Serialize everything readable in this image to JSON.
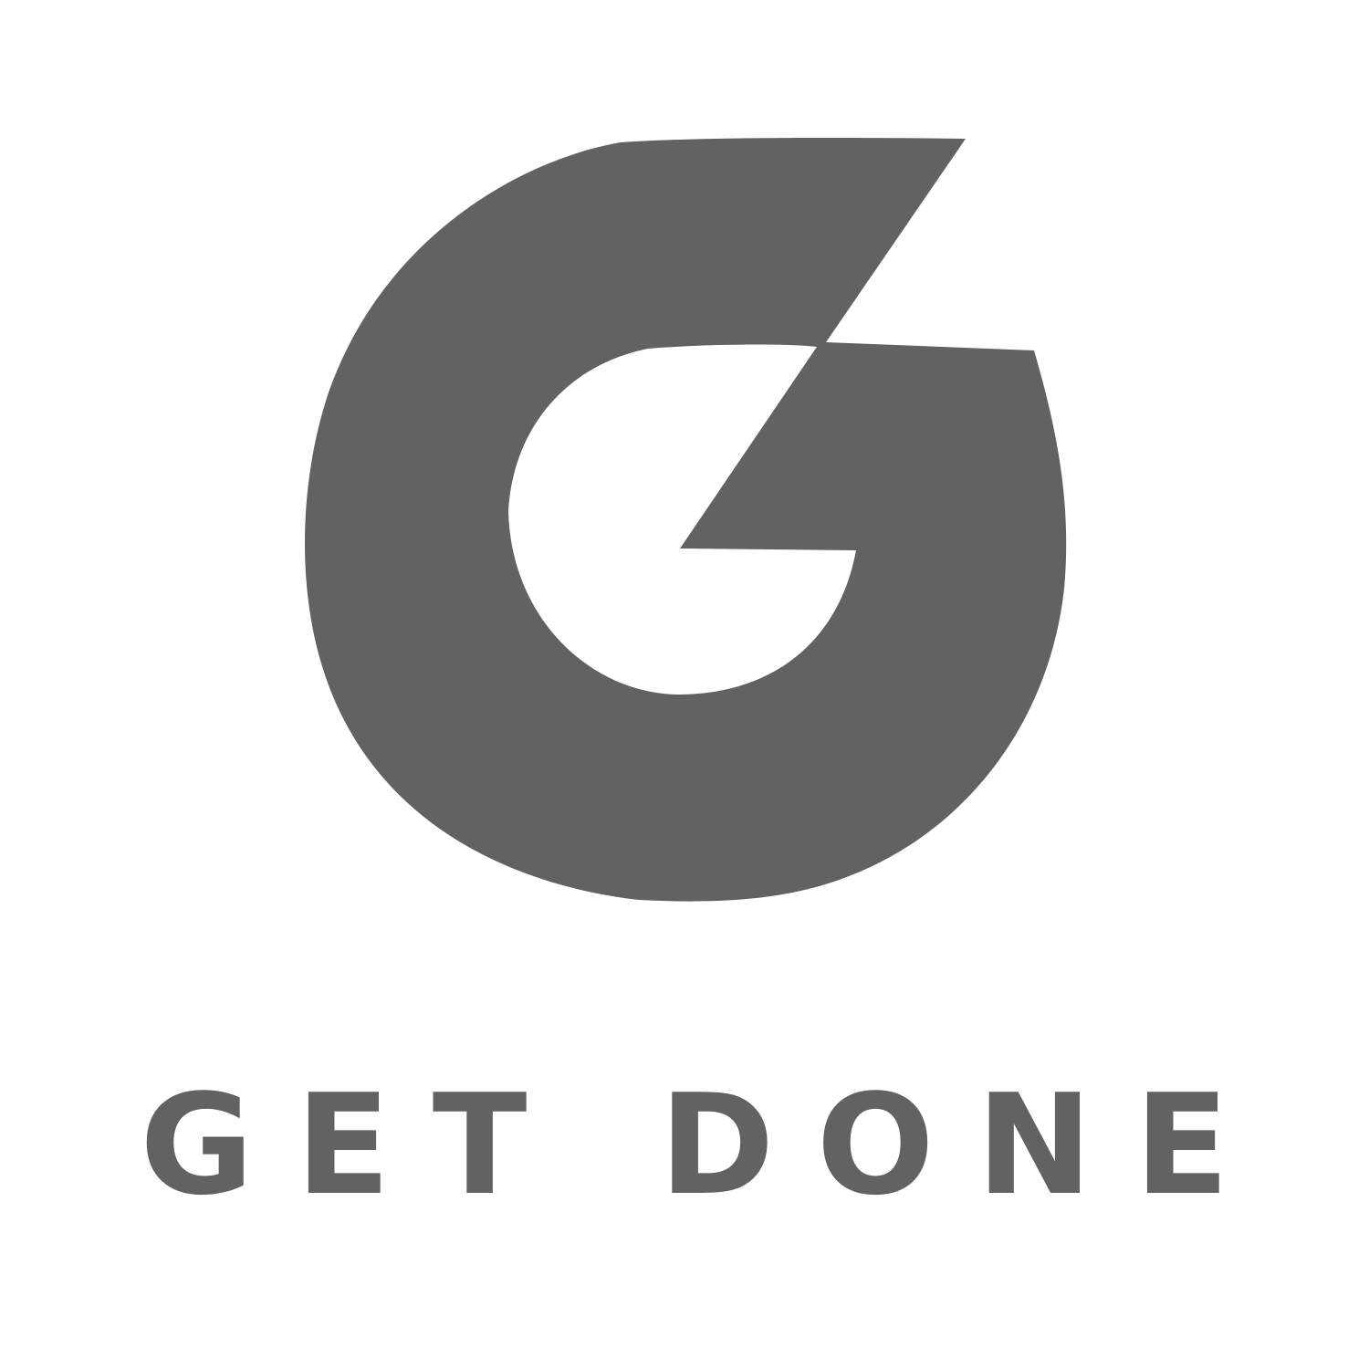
{
  "brand": {
    "logo_icon": "g-bolt-logo-icon",
    "wordmark": "GET DONE",
    "color": "#626262",
    "background": "#ffffff"
  }
}
